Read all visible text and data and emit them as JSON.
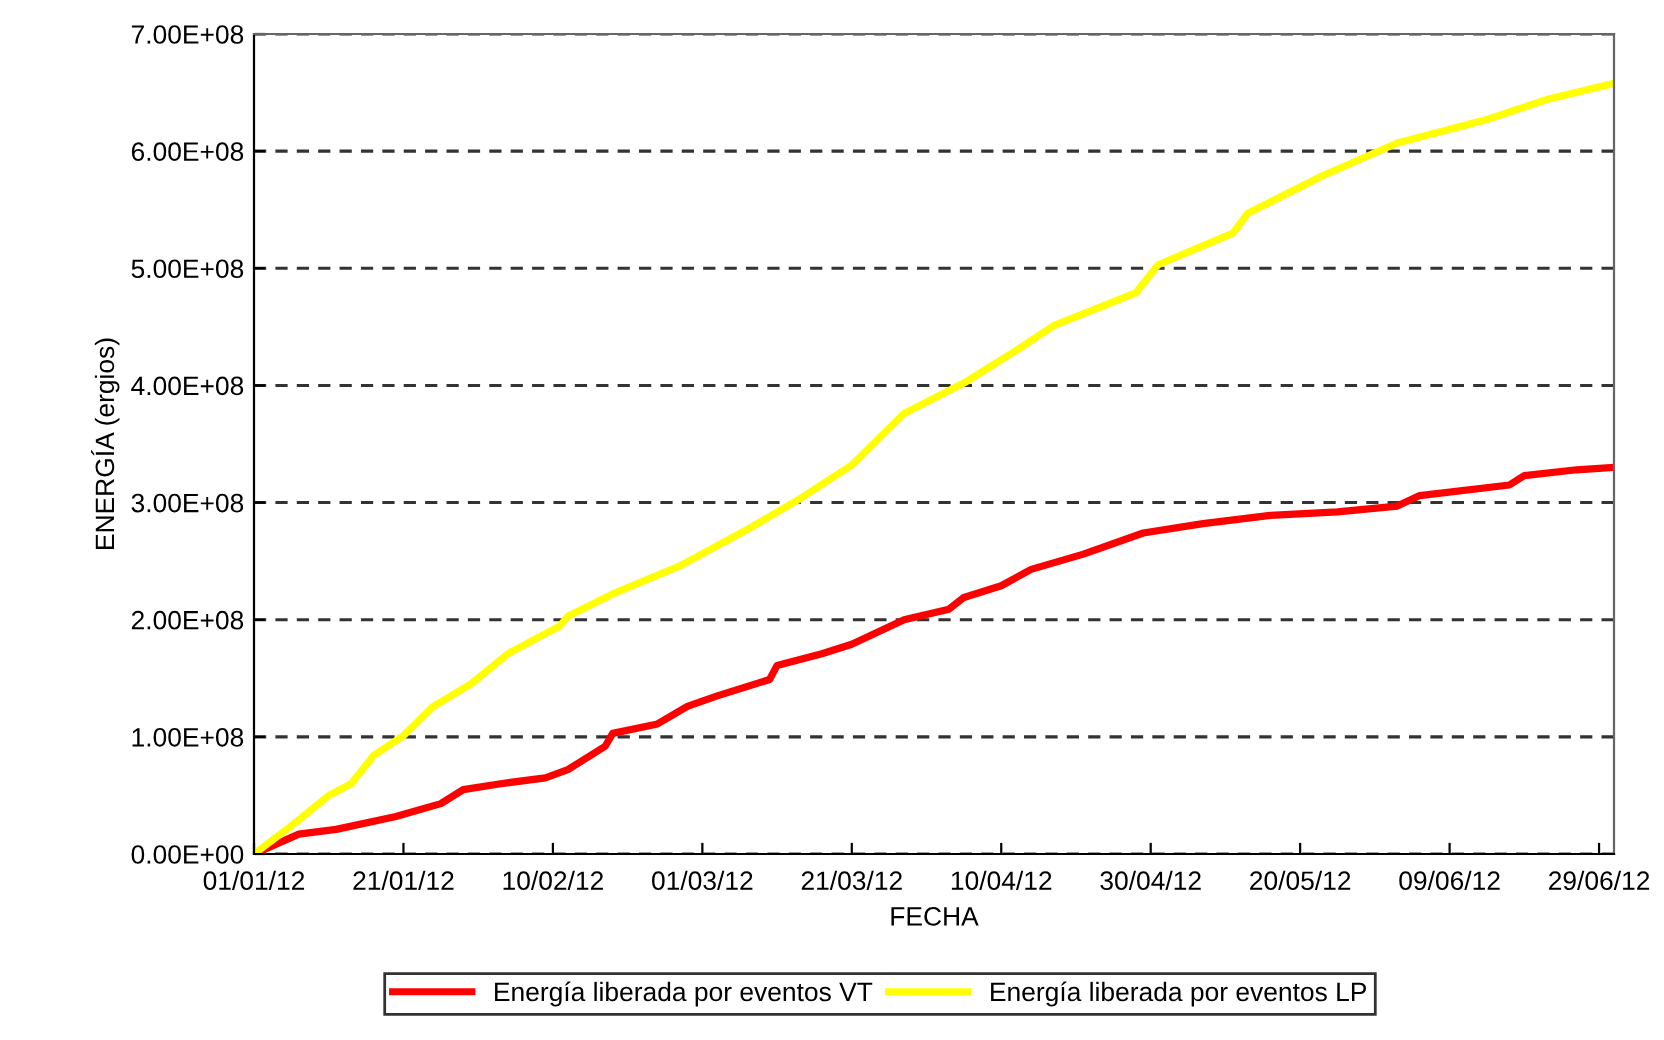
{
  "chart_data": {
    "type": "line",
    "xlabel": "FECHA",
    "ylabel": "ENERGÍA (ergios)",
    "xlim": [
      "2012-01-01",
      "2012-07-01"
    ],
    "xticks": [
      {
        "value": "2012-01-01",
        "label": "01/01/12"
      },
      {
        "value": "2012-01-21",
        "label": "21/01/12"
      },
      {
        "value": "2012-02-10",
        "label": "10/02/12"
      },
      {
        "value": "2012-03-01",
        "label": "01/03/12"
      },
      {
        "value": "2012-03-21",
        "label": "21/03/12"
      },
      {
        "value": "2012-04-10",
        "label": "10/04/12"
      },
      {
        "value": "2012-04-30",
        "label": "30/04/12"
      },
      {
        "value": "2012-05-20",
        "label": "20/05/12"
      },
      {
        "value": "2012-06-09",
        "label": "09/06/12"
      },
      {
        "value": "2012-06-29",
        "label": "29/06/12"
      }
    ],
    "ylim": [
      0,
      700000000
    ],
    "yticks": [
      {
        "value": 0,
        "label": "0.00E+00"
      },
      {
        "value": 100000000,
        "label": "1.00E+08"
      },
      {
        "value": 200000000,
        "label": "2.00E+08"
      },
      {
        "value": 300000000,
        "label": "3.00E+08"
      },
      {
        "value": 400000000,
        "label": "4.00E+08"
      },
      {
        "value": 500000000,
        "label": "5.00E+08"
      },
      {
        "value": 600000000,
        "label": "6.00E+08"
      },
      {
        "value": 700000000,
        "label": "7.00E+08"
      }
    ],
    "grid": "y",
    "legend": "bottom",
    "marker": "none",
    "line_style": "solid",
    "series": [
      {
        "name": "Energía liberada por eventos VT",
        "color": "#ff0000",
        "x": [
          "2012-01-01",
          "2012-01-07",
          "2012-01-12",
          "2012-01-20",
          "2012-01-26",
          "2012-01-29",
          "2012-02-03",
          "2012-02-09",
          "2012-02-12",
          "2012-02-17",
          "2012-02-18",
          "2012-02-24",
          "2012-02-28",
          "2012-03-03",
          "2012-03-10",
          "2012-03-11",
          "2012-03-17",
          "2012-03-21",
          "2012-03-25",
          "2012-03-28",
          "2012-04-03",
          "2012-04-05",
          "2012-04-10",
          "2012-04-14",
          "2012-04-21",
          "2012-04-29",
          "2012-05-07",
          "2012-05-16",
          "2012-05-25",
          "2012-06-02",
          "2012-06-05",
          "2012-06-17",
          "2012-06-19",
          "2012-06-26",
          "2012-07-01"
        ],
        "values": [
          0,
          17000000,
          21000000,
          32000000,
          43000000,
          55000000,
          60000000,
          65000000,
          72000000,
          92000000,
          103000000,
          111000000,
          126000000,
          135000000,
          149000000,
          161000000,
          171000000,
          179000000,
          191000000,
          200000000,
          209000000,
          219000000,
          229000000,
          243000000,
          256000000,
          274000000,
          282000000,
          289000000,
          292000000,
          297000000,
          306000000,
          315000000,
          323000000,
          328000000,
          330000000
        ]
      },
      {
        "name": "Energía liberada por eventos LP",
        "color": "#ffff00",
        "x": [
          "2012-01-01",
          "2012-01-06",
          "2012-01-11",
          "2012-01-14",
          "2012-01-17",
          "2012-01-21",
          "2012-01-25",
          "2012-01-30",
          "2012-02-04",
          "2012-02-11",
          "2012-02-12",
          "2012-02-18",
          "2012-02-27",
          "2012-03-07",
          "2012-03-14",
          "2012-03-21",
          "2012-03-28",
          "2012-04-05",
          "2012-04-13",
          "2012-04-17",
          "2012-04-28",
          "2012-05-01",
          "2012-05-11",
          "2012-05-13",
          "2012-05-23",
          "2012-06-02",
          "2012-06-14",
          "2012-06-22",
          "2012-07-01"
        ],
        "values": [
          0,
          24000000,
          50000000,
          60000000,
          84000000,
          101000000,
          126000000,
          145000000,
          171000000,
          195000000,
          203000000,
          222000000,
          246000000,
          277000000,
          303000000,
          332000000,
          376000000,
          402000000,
          434000000,
          451000000,
          479000000,
          503000000,
          530000000,
          547000000,
          579000000,
          607000000,
          627000000,
          644000000,
          658000000
        ]
      }
    ]
  }
}
